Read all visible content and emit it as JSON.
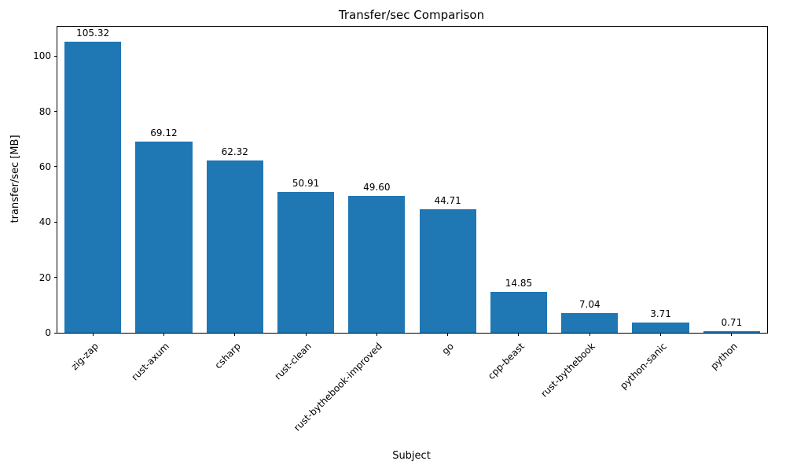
{
  "chart_data": {
    "type": "bar",
    "title": "Transfer/sec Comparison",
    "xlabel": "Subject",
    "ylabel": "transfer/sec [MB]",
    "categories": [
      "zig-zap",
      "rust-axum",
      "csharp",
      "rust-clean",
      "rust-bythebook-improved",
      "go",
      "cpp-beast",
      "rust-bythebook",
      "python-sanic",
      "python"
    ],
    "values": [
      105.32,
      69.12,
      62.32,
      50.91,
      49.6,
      44.71,
      14.85,
      7.04,
      3.71,
      0.71
    ],
    "value_labels": [
      "105.32",
      "69.12",
      "62.32",
      "50.91",
      "49.60",
      "44.71",
      "14.85",
      "7.04",
      "3.71",
      "0.71"
    ],
    "bar_color": "#1f77b4",
    "axis_color": "#000000",
    "ylim": [
      0,
      110.6
    ],
    "yticks": [
      0,
      20,
      40,
      60,
      80,
      100
    ],
    "grid": false,
    "legend_position": "none"
  }
}
